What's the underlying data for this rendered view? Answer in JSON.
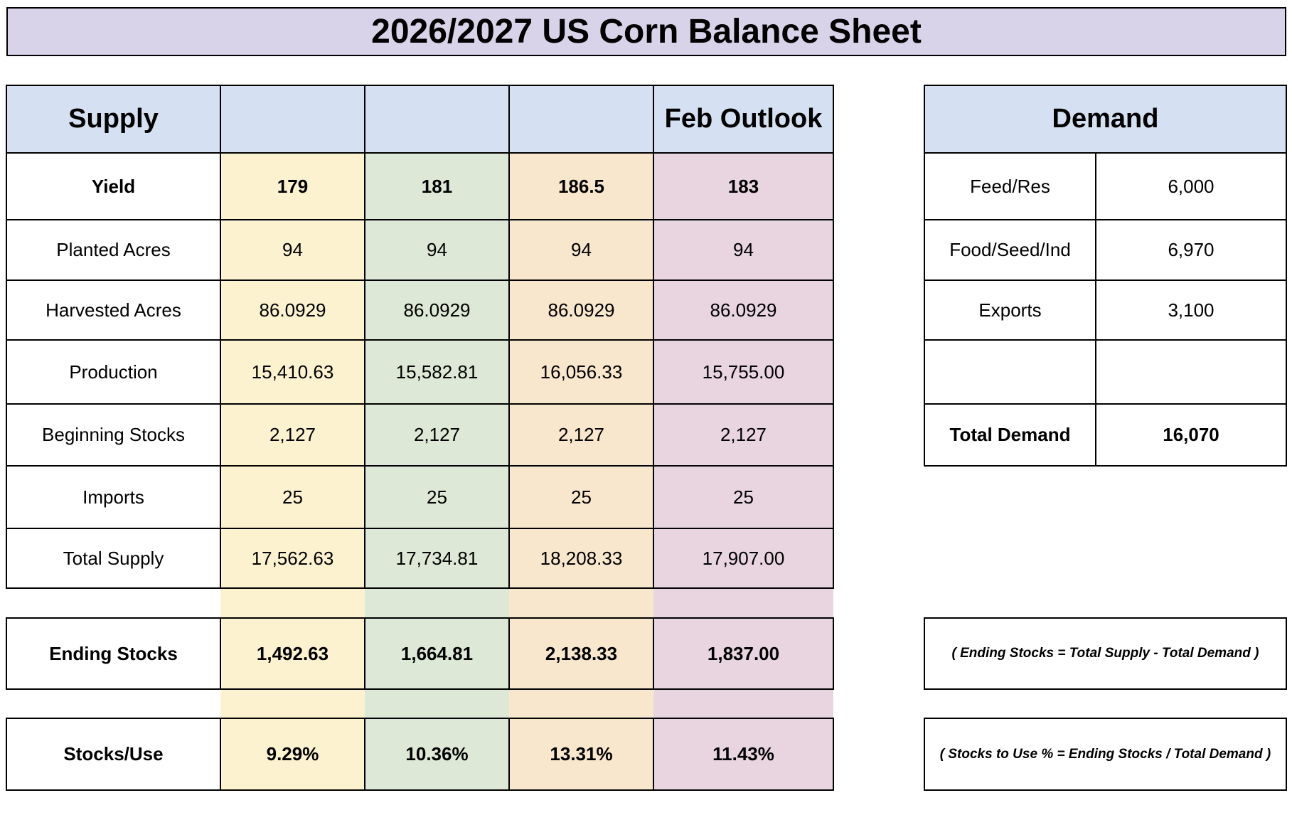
{
  "title": "2026/2027 US Corn Balance Sheet",
  "supply": {
    "header": "Supply",
    "column_headers": [
      "",
      "",
      "",
      "Feb Outlook"
    ],
    "rows": [
      {
        "label": "Yield",
        "values": [
          "179",
          "181",
          "186.5",
          "183"
        ],
        "bold": true
      },
      {
        "label": "Planted Acres",
        "values": [
          "94",
          "94",
          "94",
          "94"
        ],
        "bold": false
      },
      {
        "label": "Harvested Acres",
        "values": [
          "86.0929",
          "86.0929",
          "86.0929",
          "86.0929"
        ],
        "bold": false
      },
      {
        "label": "Production",
        "values": [
          "15,410.63",
          "15,582.81",
          "16,056.33",
          "15,755.00"
        ],
        "bold": false
      },
      {
        "label": "Beginning Stocks",
        "values": [
          "2,127",
          "2,127",
          "2,127",
          "2,127"
        ],
        "bold": false
      },
      {
        "label": "Imports",
        "values": [
          "25",
          "25",
          "25",
          "25"
        ],
        "bold": false
      },
      {
        "label": "Total Supply",
        "values": [
          "17,562.63",
          "17,734.81",
          "18,208.33",
          "17,907.00"
        ],
        "bold": false
      }
    ],
    "ending_stocks": {
      "label": "Ending Stocks",
      "values": [
        "1,492.63",
        "1,664.81",
        "2,138.33",
        "1,837.00"
      ]
    },
    "stocks_use": {
      "label": "Stocks/Use",
      "values": [
        "9.29%",
        "10.36%",
        "13.31%",
        "11.43%"
      ]
    }
  },
  "demand": {
    "header": "Demand",
    "rows": [
      {
        "label": "Feed/Res",
        "value": "6,000"
      },
      {
        "label": "Food/Seed/Ind",
        "value": "6,970"
      },
      {
        "label": "Exports",
        "value": "3,100"
      },
      {
        "label": "",
        "value": ""
      }
    ],
    "total": {
      "label": "Total Demand",
      "value": "16,070"
    }
  },
  "notes": {
    "ending_stocks_formula": "( Ending Stocks = Total Supply - Total Demand )",
    "stocks_use_formula": "( Stocks to Use % = Ending Stocks / Total Demand )"
  },
  "colors": {
    "title_bg": "#d9d3e9",
    "header_bg": "#d5e1f2",
    "scenario_1": "#fcf2d0",
    "scenario_2": "#dde9d6",
    "scenario_3": "#f8e6cd",
    "scenario_4": "#e8d5e0"
  }
}
